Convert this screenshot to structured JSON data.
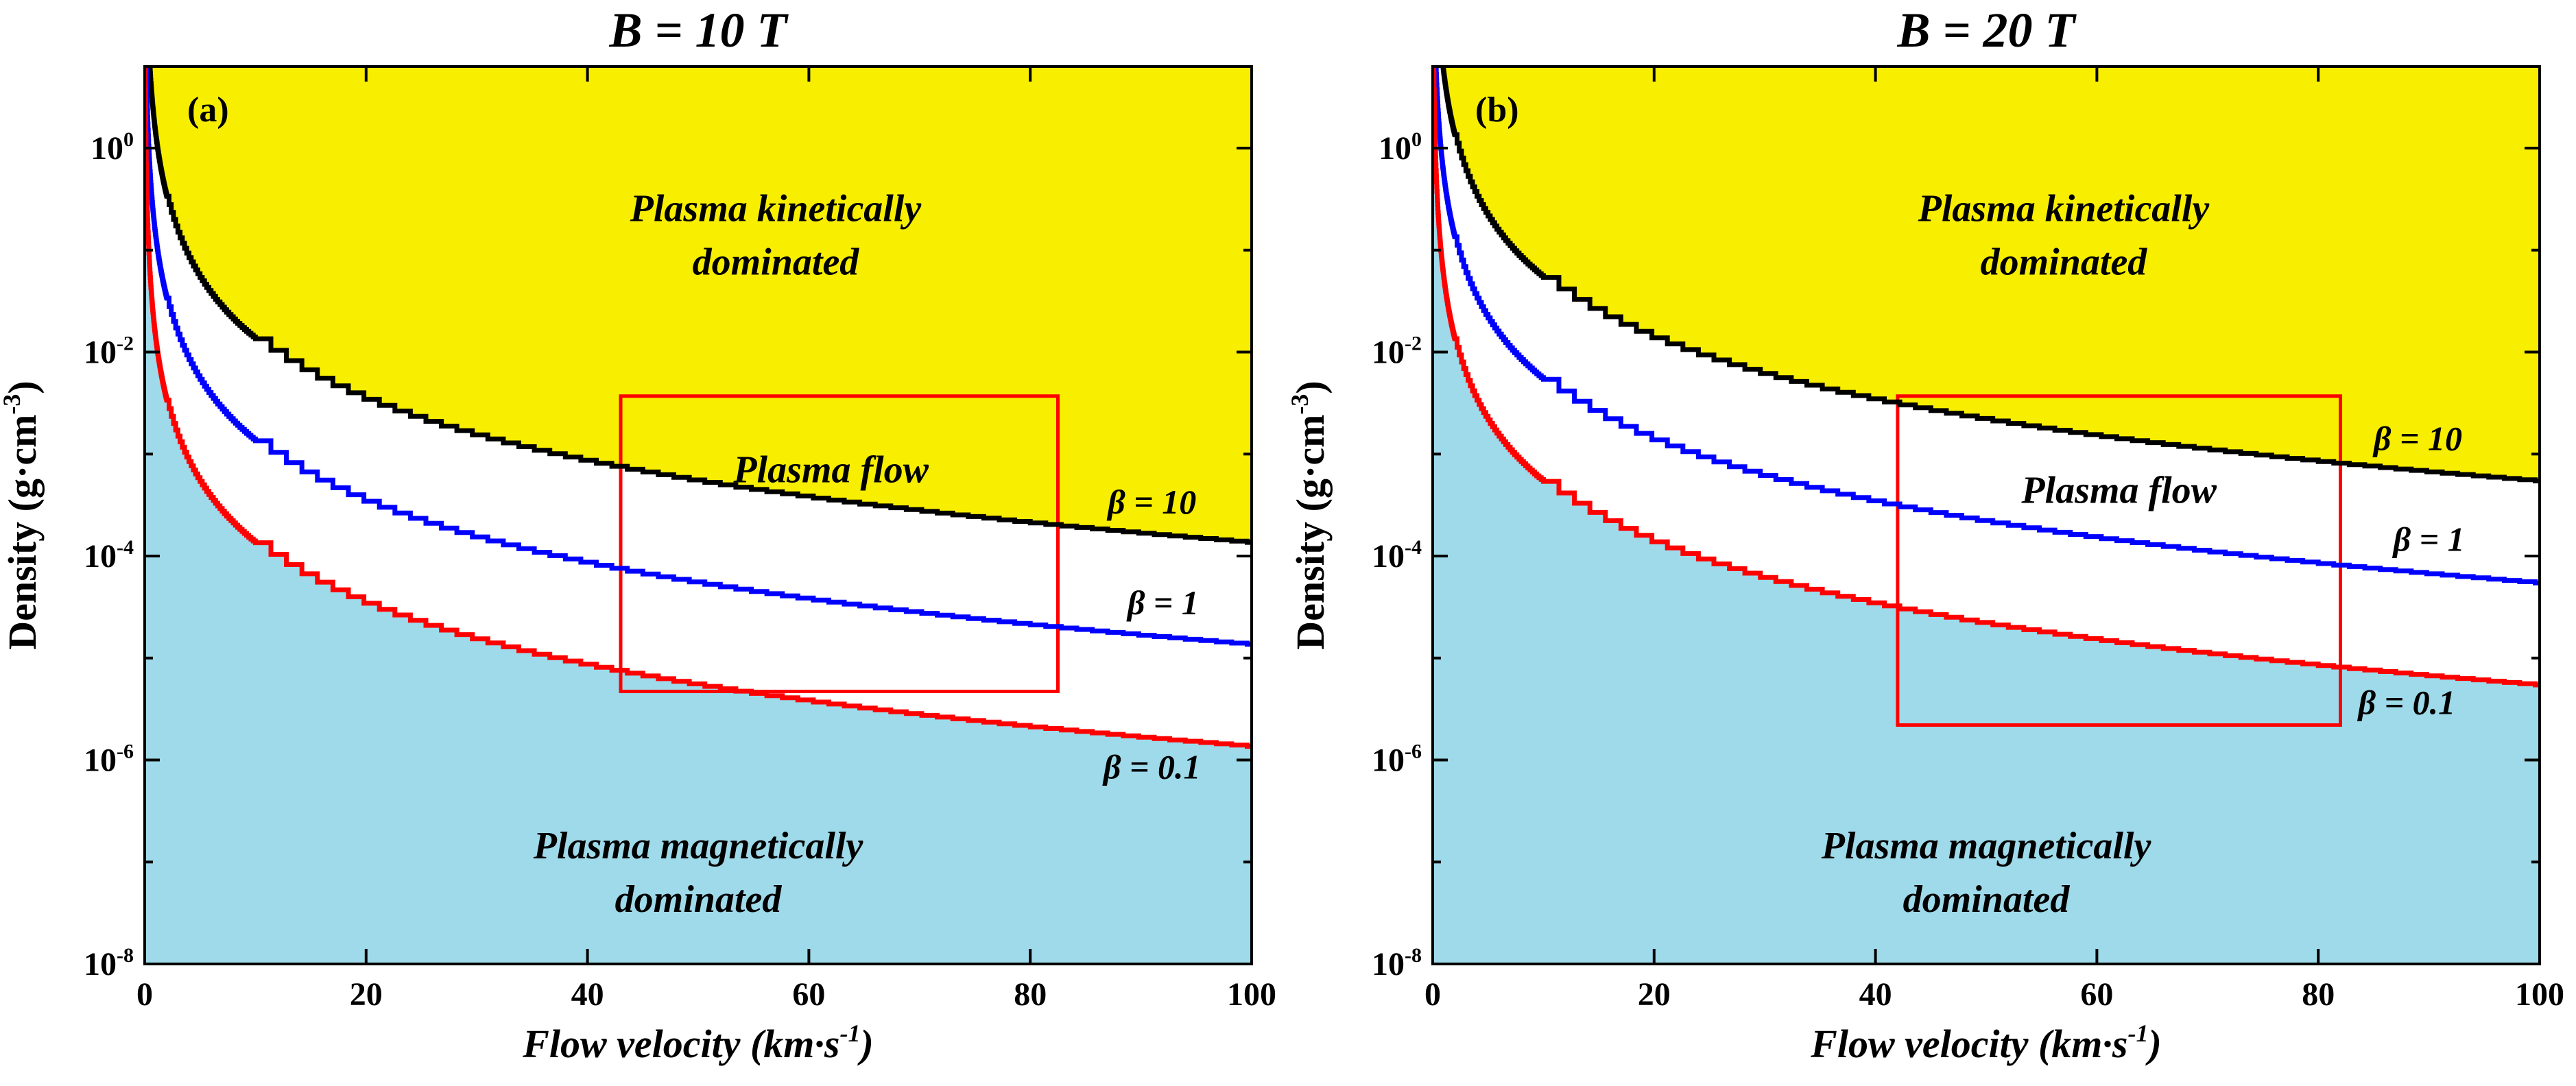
{
  "shared": {
    "xlabel_parts": {
      "pre": "Flow velocity (km·s",
      "sup": "-1",
      "post": ")"
    },
    "ylabel_parts": {
      "pre": "Density (g·cm",
      "sup": "-3",
      "post": ")"
    },
    "xlabel_text": "Flow velocity (km·s⁻¹)",
    "ylabel_text": "Density (g·cm⁻³)",
    "x_tick_labels": [
      "0",
      "20",
      "40",
      "60",
      "80",
      "100"
    ],
    "y_tick_exponents": [
      "0",
      "-2",
      "-4",
      "-6",
      "-8"
    ],
    "y_tick_display": [
      "10⁰",
      "10⁻²",
      "10⁻⁴",
      "10⁻⁶",
      "10⁻⁸"
    ],
    "colors": {
      "kinetic_fill": "#f8ee00",
      "magnetic_fill": "#9edaea",
      "flow_fill": "#ffffff",
      "rect": "#ff0000",
      "axis": "#000000",
      "beta10": "#000000",
      "beta1": "#0000ff",
      "beta01": "#ff0000"
    }
  },
  "chart_data": [
    {
      "type": "line",
      "panel_label": "(a)",
      "title": "B = 10 T",
      "xlabel": "Flow velocity (km·s⁻¹)",
      "ylabel": "Density (g·cm⁻³)",
      "yscale": "log",
      "xlim": [
        0,
        100
      ],
      "ylim": [
        1e-08,
        6.3
      ],
      "xticks": [
        0,
        20,
        40,
        60,
        80,
        100
      ],
      "yticks": [
        1,
        0.01,
        0.0001,
        1e-06,
        1e-08
      ],
      "model": "rho(v) = coeff * beta / v^2   (g·cm⁻³, v in km·s⁻¹)",
      "coeff": 0.135,
      "series": [
        {
          "name": "β = 10",
          "beta": 10,
          "color": "#000000",
          "x": [
            10,
            20,
            30,
            40,
            50,
            60,
            70,
            80,
            90,
            100
          ],
          "y": [
            0.0135,
            0.00338,
            0.0015,
            0.000844,
            0.00054,
            0.000375,
            0.000276,
            0.000211,
            0.000167,
            0.000135
          ]
        },
        {
          "name": "β = 1",
          "beta": 1,
          "color": "#0000ff",
          "x": [
            10,
            20,
            30,
            40,
            50,
            60,
            70,
            80,
            90,
            100
          ],
          "y": [
            0.00135,
            0.000338,
            0.00015,
            8.44e-05,
            5.4e-05,
            3.75e-05,
            2.76e-05,
            2.11e-05,
            1.67e-05,
            1.35e-05
          ]
        },
        {
          "name": "β = 0.1",
          "beta": 0.1,
          "color": "#ff0000",
          "x": [
            10,
            20,
            30,
            40,
            50,
            60,
            70,
            80,
            90,
            100
          ],
          "y": [
            0.000135,
            3.38e-05,
            1.5e-05,
            8.44e-06,
            5.4e-06,
            3.75e-06,
            2.76e-06,
            2.11e-06,
            1.67e-06,
            1.35e-06
          ]
        }
      ],
      "series_labels": [
        {
          "text": "β = 10",
          "x": 91,
          "dy_decades": 0.32
        },
        {
          "text": "β = 1",
          "x": 92,
          "dy_decades": 0.34
        },
        {
          "text": "β = 0.1",
          "x": 91,
          "dy_decades": -0.28
        }
      ],
      "regions": [
        {
          "name": "kinetic",
          "label_lines": [
            "Plasma kinetically",
            "dominated"
          ],
          "x": 57,
          "log10_rho": -0.85
        },
        {
          "name": "flow",
          "label_lines": [
            "Plasma flow"
          ],
          "x": 62,
          "log10_rho": -3.15
        },
        {
          "name": "magnetic",
          "label_lines": [
            "Plasma magnetically",
            "dominated"
          ],
          "x": 50,
          "log10_rho": -7.1
        }
      ],
      "highlight_rect": {
        "x": [
          43,
          82.5
        ],
        "rho": [
          4.7e-06,
          0.0037
        ]
      }
    },
    {
      "type": "line",
      "panel_label": "(b)",
      "title": "B = 20 T",
      "xlabel": "Flow velocity (km·s⁻¹)",
      "ylabel": "Density (g·cm⁻³)",
      "yscale": "log",
      "xlim": [
        0,
        100
      ],
      "ylim": [
        1e-08,
        6.3
      ],
      "xticks": [
        0,
        20,
        40,
        60,
        80,
        100
      ],
      "yticks": [
        1,
        0.01,
        0.0001,
        1e-06,
        1e-08
      ],
      "model": "rho(v) = coeff * beta / v^2   (g·cm⁻³, v in km·s⁻¹)",
      "coeff": 0.54,
      "series": [
        {
          "name": "β = 10",
          "beta": 10,
          "color": "#000000",
          "x": [
            10,
            20,
            30,
            40,
            50,
            60,
            70,
            80,
            90,
            100
          ],
          "y": [
            0.054,
            0.0135,
            0.006,
            0.00338,
            0.00216,
            0.0015,
            0.0011,
            0.000844,
            0.000667,
            0.00054
          ]
        },
        {
          "name": "β = 1",
          "beta": 1,
          "color": "#0000ff",
          "x": [
            10,
            20,
            30,
            40,
            50,
            60,
            70,
            80,
            90,
            100
          ],
          "y": [
            0.0054,
            0.00135,
            0.0006,
            0.000338,
            0.000216,
            0.00015,
            0.00011,
            8.44e-05,
            6.67e-05,
            5.4e-05
          ]
        },
        {
          "name": "β = 0.1",
          "beta": 0.1,
          "color": "#ff0000",
          "x": [
            10,
            20,
            30,
            40,
            50,
            60,
            70,
            80,
            90,
            100
          ],
          "y": [
            0.00054,
            0.000135,
            6e-05,
            3.38e-05,
            2.16e-05,
            1.5e-05,
            1.1e-05,
            8.44e-06,
            6.67e-06,
            5.4e-06
          ]
        }
      ],
      "series_labels": [
        {
          "text": "β = 10",
          "x": 89,
          "dy_decades": 0.32
        },
        {
          "text": "β = 1",
          "x": 90,
          "dy_decades": 0.34
        },
        {
          "text": "β = 0.1",
          "x": 88,
          "dy_decades": -0.28
        }
      ],
      "regions": [
        {
          "name": "kinetic",
          "label_lines": [
            "Plasma kinetically",
            "dominated"
          ],
          "x": 57,
          "log10_rho": -0.85
        },
        {
          "name": "flow",
          "label_lines": [
            "Plasma flow"
          ],
          "x": 62,
          "log10_rho": -3.35
        },
        {
          "name": "magnetic",
          "label_lines": [
            "Plasma magnetically",
            "dominated"
          ],
          "x": 50,
          "log10_rho": -7.1
        }
      ],
      "highlight_rect": {
        "x": [
          42,
          82
        ],
        "rho": [
          2.2e-06,
          0.0037
        ]
      }
    }
  ]
}
